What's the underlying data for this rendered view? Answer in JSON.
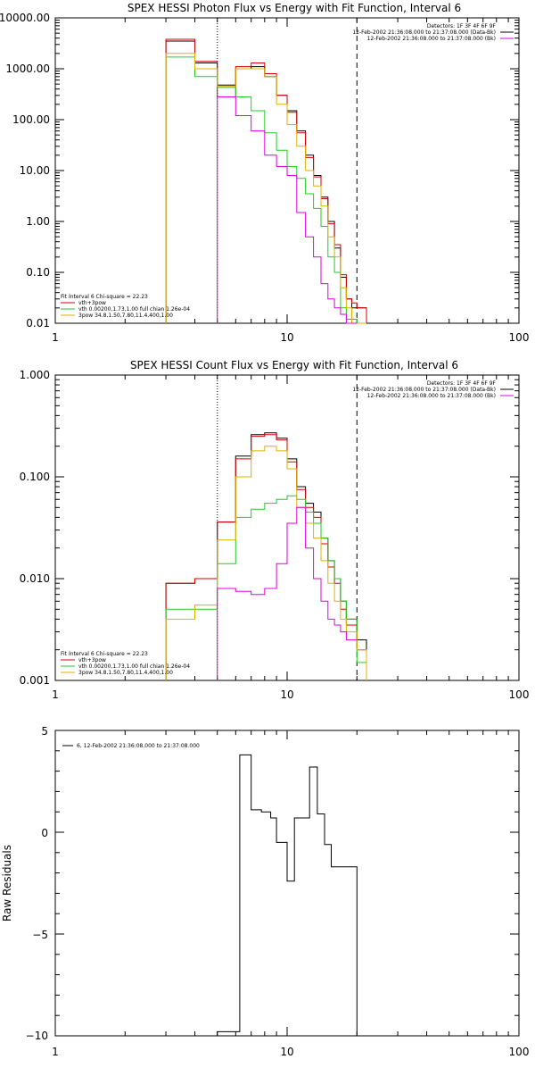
{
  "colors": {
    "black": "#000000",
    "red": "#d40000",
    "green": "#22cc22",
    "gold": "#e0b000",
    "magenta": "#e000e0",
    "purple": "#8800cc"
  },
  "panels": [
    {
      "title": "SPEX HESSI Photon Flux vs Energy with Fit Function, Interval 6",
      "ytick_labels": [
        "10000.00",
        "1000.00",
        "100.00",
        "10.00",
        "1.00",
        "0.10",
        "0.01"
      ],
      "xtick_labels": [
        "1",
        "10",
        "100"
      ],
      "legend_right": [
        "Detectors: 1F 3F 4F 6F 9F",
        "12-Feb-2002 21:36:08.000 to 21:37:08.000 (Data-Bk)",
        "12-Feb-2002 21:36:08.000 to 21:37:08.000 (Bk)"
      ],
      "legend_left": [
        "Fit Interval 6   Chi-square = 22.23",
        "vth+3pow",
        "vth 0.00200,1.73,1.00  full chian 1.26e-04",
        "3pow 34.8,1.50,7.80,11.4,400,1.00"
      ]
    },
    {
      "title": "SPEX HESSI Count Flux vs Energy with Fit Function, Interval 6",
      "ytick_labels": [
        "1.000",
        "0.100",
        "0.010",
        "0.001"
      ],
      "xtick_labels": [
        "1",
        "10",
        "100"
      ],
      "legend_right": [
        "Detectors: 1F 3F 4F 6F 9F",
        "12-Feb-2002 21:36:08.000 to 21:37:08.000 (Data-Bk)",
        "12-Feb-2002 21:36:08.000 to 21:37:08.000 (Bk)"
      ],
      "legend_left": [
        "Fit Interval 6   Chi-square = 22.23",
        "vth+3pow",
        "vth 0.00200,1.73,1.00  full chian 1.26e-04",
        "3pow 34.8,1.50,7.80,11.4,400,1.00"
      ]
    },
    {
      "title": "",
      "ylabel": "Raw Residuals",
      "ytick_labels": [
        "5",
        "0",
        "−5",
        "−10"
      ],
      "xtick_labels": [
        "1",
        "10",
        "100"
      ],
      "legend": [
        "6, 12-Feb-2002 21:36:08.000 to 21:37:08.000"
      ]
    }
  ],
  "chart_data": [
    {
      "type": "line",
      "title": "SPEX HESSI Photon Flux vs Energy with Fit Function, Interval 6",
      "xscale": "log",
      "yscale": "log",
      "xlim": [
        1,
        100
      ],
      "ylim": [
        0.01,
        10000
      ],
      "vlines": [
        {
          "x": 5,
          "style": "dotted"
        },
        {
          "x": 20,
          "style": "dashed"
        }
      ],
      "bin_edges": [
        3,
        4,
        5,
        6,
        6.5,
        7,
        7.5,
        8,
        8.5,
        9,
        9.5,
        10,
        10.5,
        11,
        11.5,
        12,
        12.5,
        13,
        13.5,
        14,
        14.5,
        15,
        15.5,
        16,
        17,
        18,
        19,
        20,
        22
      ],
      "series": [
        {
          "color": "black",
          "values": [
            3500,
            1300,
            480,
            1000,
            1000,
            1100,
            1100,
            700,
            700,
            300,
            300,
            150,
            150,
            60,
            60,
            20,
            20,
            8,
            8,
            3,
            3,
            1,
            1,
            0.3,
            0.08,
            0.03,
            0.02,
            0.02
          ]
        },
        {
          "color": "red",
          "values": [
            3800,
            1400,
            280,
            1100,
            1100,
            1300,
            1300,
            800,
            800,
            300,
            300,
            140,
            140,
            55,
            55,
            18,
            18,
            7.5,
            7.5,
            2.8,
            2.8,
            0.9,
            0.9,
            0.35,
            0.09,
            0.03,
            0.025,
            0.02
          ]
        },
        {
          "color": "green",
          "values": [
            1700,
            700,
            430,
            280,
            280,
            150,
            150,
            55,
            55,
            25,
            25,
            12,
            12,
            7,
            7,
            3.5,
            3.5,
            1.8,
            1.8,
            0.8,
            0.8,
            0.2,
            0.2,
            0.1,
            0.02,
            0.012,
            0.012,
            0.01
          ]
        },
        {
          "color": "gold",
          "values": [
            2000,
            1000,
            450,
            1000,
            1000,
            1000,
            1000,
            700,
            700,
            200,
            200,
            80,
            80,
            30,
            30,
            10,
            10,
            5,
            5,
            2,
            2,
            0.5,
            0.5,
            0.2,
            0.05,
            0.02,
            0.01,
            0.01
          ]
        },
        {
          "color": "magenta",
          "values": [
            null,
            null,
            280,
            120,
            120,
            60,
            60,
            20,
            20,
            12,
            12,
            8,
            8,
            1.5,
            1.5,
            0.5,
            0.5,
            0.2,
            0.2,
            0.06,
            0.06,
            0.03,
            0.03,
            0.02,
            0.015,
            0.01,
            0.01,
            null
          ]
        }
      ]
    },
    {
      "type": "line",
      "title": "SPEX HESSI Count Flux vs Energy with Fit Function, Interval 6",
      "xscale": "log",
      "yscale": "log",
      "xlim": [
        1,
        100
      ],
      "ylim": [
        0.001,
        1
      ],
      "vlines": [
        {
          "x": 5,
          "style": "dotted"
        },
        {
          "x": 20,
          "style": "dashed"
        }
      ],
      "bin_edges": [
        3,
        4,
        5,
        6,
        6.5,
        7,
        7.5,
        8,
        8.5,
        9,
        9.5,
        10,
        10.5,
        11,
        11.5,
        12,
        12.5,
        13,
        13.5,
        14,
        14.5,
        15,
        15.5,
        16,
        17,
        18,
        19,
        20,
        22
      ],
      "series": [
        {
          "color": "black",
          "values": [
            0.009,
            0.01,
            0.036,
            0.16,
            0.16,
            0.26,
            0.26,
            0.27,
            0.27,
            0.24,
            0.24,
            0.15,
            0.15,
            0.08,
            0.08,
            0.055,
            0.055,
            0.045,
            0.045,
            0.025,
            0.025,
            0.015,
            0.015,
            0.01,
            0.006,
            0.004,
            0.004,
            0.0025
          ]
        },
        {
          "color": "red",
          "values": [
            0.009,
            0.01,
            0.036,
            0.15,
            0.15,
            0.25,
            0.25,
            0.26,
            0.26,
            0.23,
            0.23,
            0.14,
            0.14,
            0.075,
            0.075,
            0.05,
            0.05,
            0.04,
            0.04,
            0.022,
            0.022,
            0.013,
            0.013,
            0.009,
            0.005,
            0.0035,
            0.0035,
            0.002
          ]
        },
        {
          "color": "green",
          "values": [
            0.005,
            0.005,
            0.014,
            0.04,
            0.04,
            0.048,
            0.048,
            0.055,
            0.055,
            0.06,
            0.06,
            0.065,
            0.065,
            0.06,
            0.06,
            0.045,
            0.045,
            0.035,
            0.035,
            0.025,
            0.025,
            0.015,
            0.015,
            0.01,
            0.006,
            0.004,
            0.004,
            0.0015
          ]
        },
        {
          "color": "gold",
          "values": [
            0.004,
            0.0055,
            0.024,
            0.1,
            0.1,
            0.18,
            0.18,
            0.2,
            0.2,
            0.18,
            0.18,
            0.12,
            0.12,
            0.05,
            0.05,
            0.035,
            0.035,
            0.025,
            0.025,
            0.015,
            0.015,
            0.009,
            0.009,
            0.006,
            0.004,
            0.003,
            0.003,
            0.002
          ]
        },
        {
          "color": "magenta",
          "values": [
            null,
            null,
            0.008,
            0.0075,
            0.0075,
            0.007,
            0.007,
            0.008,
            0.008,
            0.014,
            0.014,
            0.035,
            0.035,
            0.05,
            0.05,
            0.02,
            0.02,
            0.01,
            0.01,
            0.006,
            0.006,
            0.004,
            0.004,
            0.0035,
            0.003,
            0.0025,
            0.0025,
            null
          ]
        }
      ]
    },
    {
      "type": "line",
      "title": "",
      "xscale": "log",
      "yscale": "linear",
      "xlim": [
        1,
        100
      ],
      "ylim": [
        -10,
        5
      ],
      "ylabel": "Raw Residuals",
      "bin_edges": [
        5,
        6.25,
        7,
        7.75,
        8.5,
        9,
        9.5,
        10,
        10.75,
        11.5,
        12.5,
        13.5,
        14.5,
        15.5,
        17,
        20
      ],
      "series": [
        {
          "name": "6, 12-Feb-2002 21:36:08.000 to 21:37:08.000",
          "color": "black",
          "values": [
            -9.8,
            3.8,
            1.1,
            1.0,
            0.7,
            -0.5,
            -0.5,
            -2.4,
            0.7,
            0.7,
            3.2,
            0.9,
            -0.6,
            -1.7,
            -1.7
          ]
        }
      ]
    }
  ]
}
